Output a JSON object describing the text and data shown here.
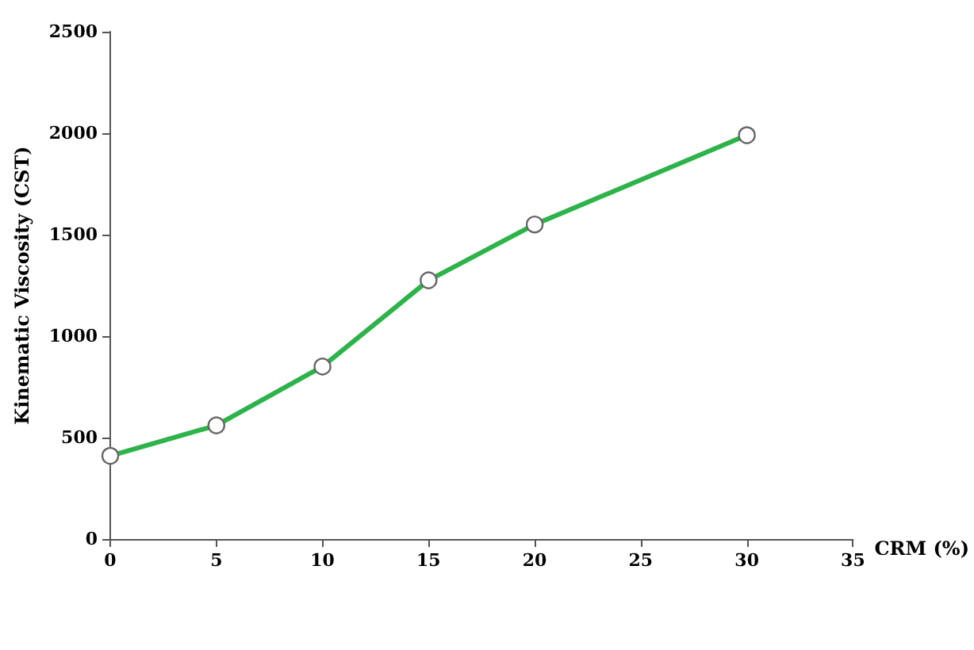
{
  "chart_data": {
    "type": "line",
    "xlabel": "CRM (%)",
    "ylabel": "Kinematic Viscosity (CST)",
    "x": [
      0,
      5,
      10,
      15,
      20,
      30
    ],
    "series": [
      {
        "color": "#2db34a",
        "values": [
          410,
          560,
          850,
          1275,
          1550,
          1990
        ]
      }
    ],
    "xlim": [
      0,
      35
    ],
    "xticks": [
      0,
      5,
      10,
      15,
      20,
      25,
      30,
      35
    ],
    "ylim": [
      0,
      2500
    ],
    "yticks": [
      0,
      500,
      1000,
      1500,
      2000,
      2500
    ],
    "grid": false,
    "marker": "circle",
    "line_style": "solid"
  }
}
